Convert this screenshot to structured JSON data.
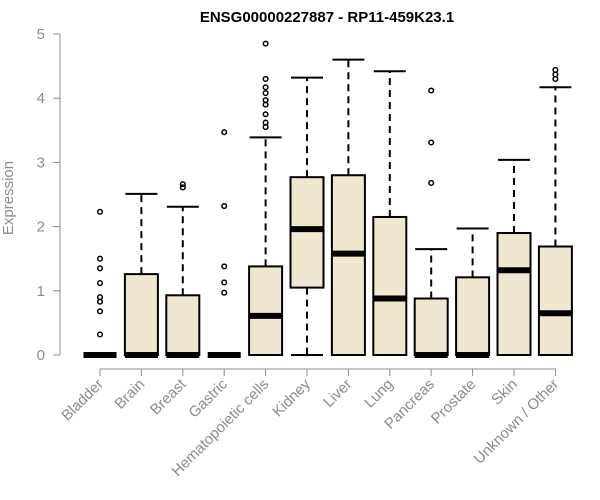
{
  "chart_data": {
    "type": "boxplot",
    "title": "ENSG00000227887 - RP11-459K23.1",
    "xlabel": "",
    "ylabel": "Expression",
    "ylim": [
      0,
      5
    ],
    "yticks": [
      "0",
      "1",
      "2",
      "3",
      "4",
      "5"
    ],
    "grid": false,
    "box_fill": "#efe7d0",
    "categories": [
      "Bladder",
      "Brain",
      "Breast",
      "Gastric",
      "Hematopoietic cells",
      "Kidney",
      "Liver",
      "Lung",
      "Pancreas",
      "Prostate",
      "Skin",
      "Unknown / Other"
    ],
    "boxes": [
      {
        "min": 0,
        "q1": 0,
        "median": 0,
        "q3": 0,
        "max": 0,
        "outliers": [
          0.32,
          0.68,
          0.83,
          0.9,
          1.12,
          1.35,
          1.5,
          2.23
        ]
      },
      {
        "min": 0,
        "q1": 0,
        "median": 0,
        "q3": 1.26,
        "max": 2.51,
        "outliers": []
      },
      {
        "min": 0,
        "q1": 0,
        "median": 0,
        "q3": 0.93,
        "max": 2.31,
        "outliers": [
          2.61,
          2.66
        ]
      },
      {
        "min": 0,
        "q1": 0,
        "median": 0,
        "q3": 0,
        "max": 0,
        "outliers": [
          0.97,
          1.13,
          1.38,
          2.32,
          3.47
        ]
      },
      {
        "min": 0,
        "q1": 0,
        "median": 0.61,
        "q3": 1.38,
        "max": 3.39,
        "outliers": [
          3.55,
          3.62,
          3.75,
          3.9,
          3.97,
          4.08,
          4.17,
          4.3,
          4.85
        ]
      },
      {
        "min": 0,
        "q1": 1.05,
        "median": 1.96,
        "q3": 2.77,
        "max": 4.32,
        "outliers": []
      },
      {
        "min": 0,
        "q1": 0,
        "median": 1.58,
        "q3": 2.8,
        "max": 4.6,
        "outliers": []
      },
      {
        "min": 0,
        "q1": 0,
        "median": 0.88,
        "q3": 2.15,
        "max": 4.42,
        "outliers": []
      },
      {
        "min": 0,
        "q1": 0,
        "median": 0,
        "q3": 0.88,
        "max": 1.65,
        "outliers": [
          2.68,
          3.31,
          4.12
        ]
      },
      {
        "min": 0,
        "q1": 0,
        "median": 0,
        "q3": 1.21,
        "max": 1.97,
        "outliers": []
      },
      {
        "min": 0,
        "q1": 0,
        "median": 1.32,
        "q3": 1.9,
        "max": 3.04,
        "outliers": []
      },
      {
        "min": 0,
        "q1": 0,
        "median": 0.65,
        "q3": 1.69,
        "max": 4.17,
        "outliers": [
          4.3,
          4.37,
          4.44
        ]
      }
    ]
  }
}
